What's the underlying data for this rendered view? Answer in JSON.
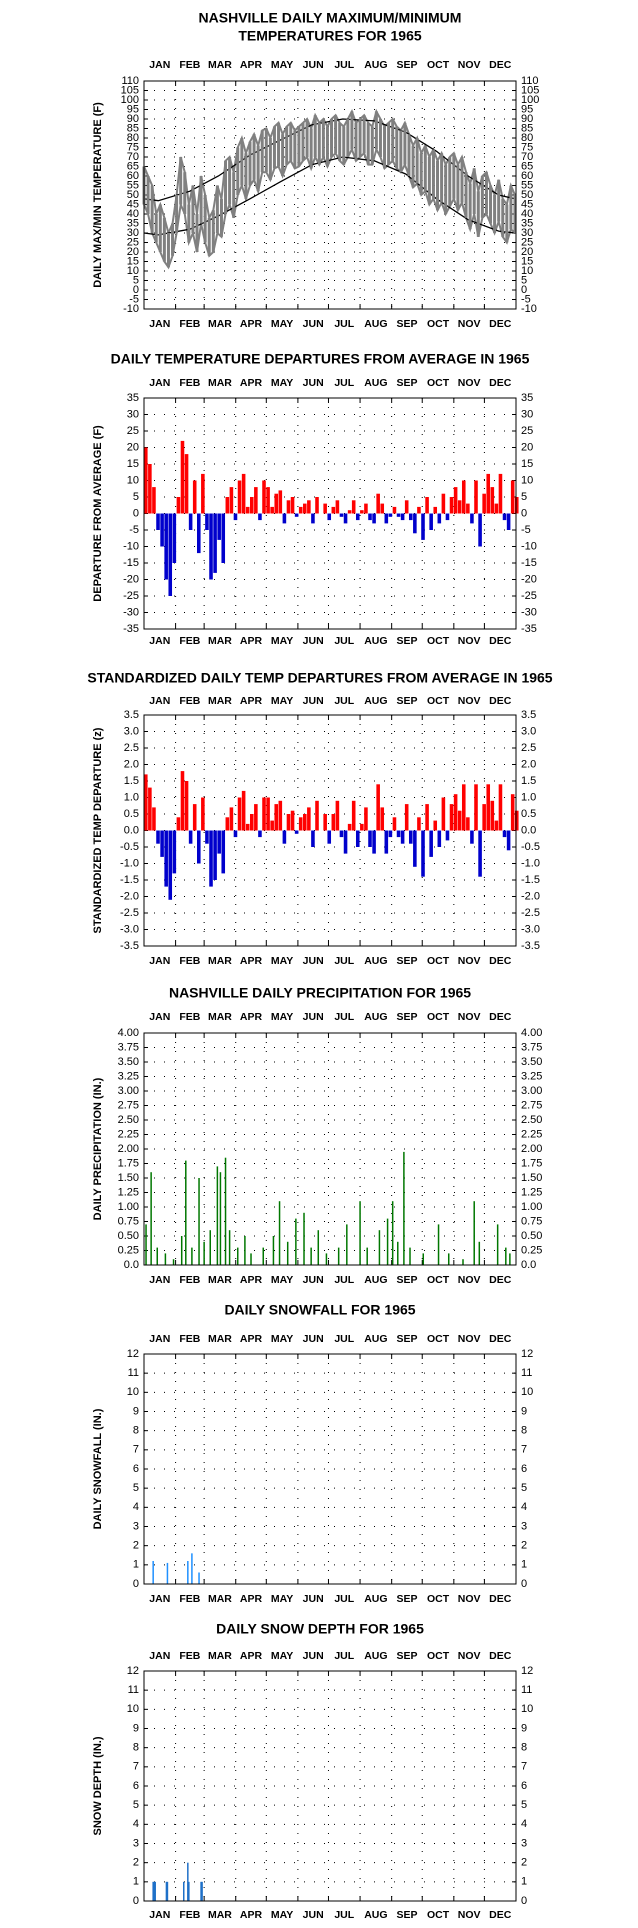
{
  "chart_data": [
    {
      "type": "line",
      "title": [
        "NASHVILLE DAILY MAXIMUM/MINIMUM",
        "TEMPERATURES FOR 1965"
      ],
      "ylabel": "DAILY MAX/MIN TEMPERATURE (F)",
      "categories": [
        "JAN",
        "FEB",
        "MAR",
        "APR",
        "MAY",
        "JUN",
        "JUL",
        "AUG",
        "SEP",
        "OCT",
        "NOV",
        "DEC"
      ],
      "xticks": [
        1,
        32,
        60,
        91,
        121,
        152,
        182,
        213,
        244,
        274,
        305,
        335,
        366
      ],
      "xlim": [
        1,
        366
      ],
      "ylim": [
        -10,
        110
      ],
      "yticks": [
        -10,
        -5,
        0,
        5,
        10,
        15,
        20,
        25,
        30,
        35,
        40,
        45,
        50,
        55,
        60,
        65,
        70,
        75,
        80,
        85,
        90,
        95,
        100,
        105,
        110
      ],
      "grid": true,
      "x": [
        1,
        5,
        9,
        13,
        17,
        21,
        25,
        29,
        33,
        37,
        41,
        45,
        49,
        53,
        57,
        61,
        65,
        69,
        73,
        77,
        81,
        85,
        89,
        93,
        97,
        101,
        105,
        109,
        113,
        117,
        121,
        125,
        129,
        133,
        137,
        141,
        145,
        149,
        153,
        157,
        161,
        165,
        169,
        173,
        177,
        181,
        185,
        189,
        193,
        197,
        201,
        205,
        209,
        213,
        217,
        221,
        225,
        229,
        233,
        237,
        241,
        245,
        249,
        253,
        257,
        261,
        265,
        269,
        273,
        277,
        281,
        285,
        289,
        293,
        297,
        301,
        305,
        309,
        313,
        317,
        321,
        325,
        329,
        333,
        337,
        341,
        345,
        349,
        353,
        357,
        361,
        365
      ],
      "series": [
        {
          "color": "#808080",
          "values": [
            65,
            60,
            55,
            40,
            45,
            38,
            30,
            35,
            50,
            70,
            62,
            45,
            55,
            40,
            60,
            50,
            38,
            42,
            55,
            48,
            68,
            70,
            62,
            75,
            80,
            72,
            78,
            82,
            76,
            84,
            85,
            80,
            86,
            88,
            82,
            86,
            88,
            84,
            86,
            88,
            90,
            85,
            92,
            88,
            90,
            86,
            90,
            92,
            88,
            86,
            90,
            94,
            88,
            90,
            92,
            88,
            86,
            94,
            90,
            86,
            88,
            90,
            86,
            84,
            88,
            82,
            76,
            80,
            72,
            76,
            70,
            74,
            68,
            72,
            66,
            70,
            72,
            66,
            70,
            62,
            56,
            64,
            52,
            60,
            62,
            55,
            50,
            58,
            48,
            45,
            55,
            50
          ]
        },
        {
          "color": "#808080",
          "values": [
            45,
            40,
            30,
            25,
            20,
            15,
            12,
            18,
            30,
            45,
            40,
            25,
            30,
            20,
            35,
            25,
            18,
            20,
            30,
            28,
            40,
            45,
            38,
            50,
            55,
            48,
            55,
            58,
            52,
            62,
            62,
            58,
            64,
            65,
            60,
            66,
            68,
            64,
            65,
            68,
            70,
            64,
            70,
            66,
            70,
            65,
            70,
            72,
            68,
            66,
            70,
            74,
            68,
            70,
            72,
            66,
            66,
            74,
            70,
            64,
            66,
            68,
            64,
            62,
            66,
            60,
            54,
            56,
            50,
            52,
            45,
            48,
            42,
            46,
            40,
            44,
            48,
            42,
            46,
            38,
            32,
            40,
            28,
            38,
            40,
            35,
            30,
            36,
            28,
            25,
            32,
            30
          ]
        },
        {
          "color": "#000000",
          "x": [
            1,
            15,
            46,
            74,
            105,
            135,
            166,
            196,
            227,
            258,
            288,
            319,
            349,
            365
          ],
          "values": [
            48,
            47,
            52,
            60,
            71,
            79,
            87,
            90,
            89,
            83,
            73,
            60,
            50,
            48
          ]
        },
        {
          "color": "#000000",
          "x": [
            1,
            15,
            46,
            74,
            105,
            135,
            166,
            196,
            227,
            258,
            288,
            319,
            349,
            365
          ],
          "values": [
            30,
            29,
            32,
            39,
            48,
            57,
            66,
            70,
            68,
            61,
            48,
            37,
            31,
            30
          ]
        }
      ]
    },
    {
      "type": "bar",
      "title": "DAILY TEMPERATURE DEPARTURES FROM AVERAGE IN 1965",
      "ylabel": "DEPARTURE FROM AVERAGE (F)",
      "categories": [
        "JAN",
        "FEB",
        "MAR",
        "APR",
        "MAY",
        "JUN",
        "JUL",
        "AUG",
        "SEP",
        "OCT",
        "NOV",
        "DEC"
      ],
      "xticks": [
        1,
        32,
        60,
        91,
        121,
        152,
        182,
        213,
        244,
        274,
        305,
        335,
        366
      ],
      "xlim": [
        1,
        366
      ],
      "ylim": [
        -35,
        35
      ],
      "yticks": [
        -35,
        -30,
        -25,
        -20,
        -15,
        -10,
        -5,
        0,
        5,
        10,
        15,
        20,
        25,
        30,
        35
      ],
      "grid": true,
      "positive_color": "#ff0000",
      "negative_color": "#0000cc",
      "x": [
        1,
        5,
        9,
        13,
        17,
        21,
        25,
        29,
        33,
        37,
        41,
        45,
        49,
        53,
        57,
        61,
        65,
        69,
        73,
        77,
        81,
        85,
        89,
        93,
        97,
        101,
        105,
        109,
        113,
        117,
        121,
        125,
        129,
        133,
        137,
        141,
        145,
        149,
        153,
        157,
        161,
        165,
        169,
        173,
        177,
        181,
        185,
        189,
        193,
        197,
        201,
        205,
        209,
        213,
        217,
        221,
        225,
        229,
        233,
        237,
        241,
        245,
        249,
        253,
        257,
        261,
        265,
        269,
        273,
        277,
        281,
        285,
        289,
        293,
        297,
        301,
        305,
        309,
        313,
        317,
        321,
        325,
        329,
        333,
        337,
        341,
        345,
        349,
        353,
        357,
        361,
        365
      ],
      "values": [
        20,
        15,
        8,
        -5,
        -10,
        -20,
        -25,
        -15,
        5,
        22,
        18,
        -5,
        10,
        -12,
        12,
        -5,
        -20,
        -18,
        -8,
        -15,
        5,
        8,
        -2,
        10,
        12,
        2,
        5,
        8,
        -2,
        10,
        8,
        2,
        6,
        7,
        -3,
        4,
        5,
        -1,
        2,
        3,
        4,
        -3,
        5,
        0,
        3,
        -2,
        2,
        4,
        -1,
        -3,
        1,
        4,
        -2,
        1,
        3,
        -2,
        -3,
        6,
        3,
        -3,
        -1,
        2,
        -1,
        -2,
        4,
        -2,
        -6,
        2,
        -8,
        5,
        -5,
        2,
        -3,
        6,
        -2,
        5,
        8,
        4,
        10,
        3,
        -3,
        10,
        -10,
        6,
        12,
        8,
        3,
        12,
        -2,
        -5,
        10,
        5
      ]
    },
    {
      "type": "bar",
      "title": "STANDARDIZED DAILY TEMP DEPARTURES FROM AVERAGE IN 1965",
      "ylabel": "STANDARDIZED TEMP DEPARTURE (z)",
      "categories": [
        "JAN",
        "FEB",
        "MAR",
        "APR",
        "MAY",
        "JUN",
        "JUL",
        "AUG",
        "SEP",
        "OCT",
        "NOV",
        "DEC"
      ],
      "xticks": [
        1,
        32,
        60,
        91,
        121,
        152,
        182,
        213,
        244,
        274,
        305,
        335,
        366
      ],
      "xlim": [
        1,
        366
      ],
      "ylim": [
        -3.5,
        3.5
      ],
      "yticks": [
        -3.5,
        {
          "value": -3,
          "label": "-3.0"
        },
        -2.5,
        {
          "value": -2,
          "label": "-2.0"
        },
        -1.5,
        {
          "value": -1,
          "label": "-1.0"
        },
        -0.5,
        {
          "value": 0,
          "label": "0.0"
        },
        0.5,
        {
          "value": 1,
          "label": "1.0"
        },
        1.5,
        {
          "value": 2,
          "label": "2.0"
        },
        2.5,
        {
          "value": 3,
          "label": "3.0"
        },
        3.5
      ],
      "grid": true,
      "positive_color": "#ff0000",
      "negative_color": "#0000cc",
      "x": [
        1,
        5,
        9,
        13,
        17,
        21,
        25,
        29,
        33,
        37,
        41,
        45,
        49,
        53,
        57,
        61,
        65,
        69,
        73,
        77,
        81,
        85,
        89,
        93,
        97,
        101,
        105,
        109,
        113,
        117,
        121,
        125,
        129,
        133,
        137,
        141,
        145,
        149,
        153,
        157,
        161,
        165,
        169,
        173,
        177,
        181,
        185,
        189,
        193,
        197,
        201,
        205,
        209,
        213,
        217,
        221,
        225,
        229,
        233,
        237,
        241,
        245,
        249,
        253,
        257,
        261,
        265,
        269,
        273,
        277,
        281,
        285,
        289,
        293,
        297,
        301,
        305,
        309,
        313,
        317,
        321,
        325,
        329,
        333,
        337,
        341,
        345,
        349,
        353,
        357,
        361,
        365
      ],
      "values": [
        1.7,
        1.3,
        0.7,
        -0.4,
        -0.8,
        -1.7,
        -2.1,
        -1.3,
        0.4,
        1.8,
        1.5,
        -0.4,
        0.8,
        -1.0,
        1.0,
        -0.4,
        -1.7,
        -1.5,
        -0.7,
        -1.3,
        0.4,
        0.7,
        -0.2,
        1.0,
        1.2,
        0.2,
        0.5,
        0.8,
        -0.2,
        1.0,
        1.0,
        0.3,
        0.8,
        0.9,
        -0.4,
        0.5,
        0.6,
        -0.1,
        0.4,
        0.5,
        0.7,
        -0.5,
        0.9,
        0,
        0.5,
        -0.4,
        0.5,
        0.9,
        -0.2,
        -0.7,
        0.2,
        0.9,
        -0.5,
        0.2,
        0.7,
        -0.5,
        -0.7,
        1.4,
        0.7,
        -0.7,
        -0.2,
        0.4,
        -0.2,
        -0.4,
        0.8,
        -0.4,
        -1.1,
        0.4,
        -1.4,
        0.8,
        -0.8,
        0.3,
        -0.5,
        1.0,
        -0.3,
        0.8,
        1.1,
        0.6,
        1.4,
        0.4,
        -0.4,
        1.4,
        -1.4,
        0.8,
        1.4,
        0.9,
        0.3,
        1.4,
        -0.2,
        -0.6,
        1.1,
        0.6
      ]
    },
    {
      "type": "stem",
      "title": "NASHVILLE DAILY PRECIPITATION FOR 1965",
      "ylabel": "DAILY PRECIPITATION (IN.)",
      "categories": [
        "JAN",
        "FEB",
        "MAR",
        "APR",
        "MAY",
        "JUN",
        "JUL",
        "AUG",
        "SEP",
        "OCT",
        "NOV",
        "DEC"
      ],
      "xticks": [
        1,
        32,
        60,
        91,
        121,
        152,
        182,
        213,
        244,
        274,
        305,
        335,
        366
      ],
      "xlim": [
        1,
        366
      ],
      "ylim": [
        0,
        4
      ],
      "yticks": [
        {
          "value": 0,
          "label": "0.0"
        },
        0.25,
        {
          "value": 0.5,
          "label": "0.50"
        },
        0.75,
        {
          "value": 1,
          "label": "1.00"
        },
        1.25,
        {
          "value": 1.5,
          "label": "1.50"
        },
        1.75,
        {
          "value": 2,
          "label": "2.00"
        },
        2.25,
        {
          "value": 2.5,
          "label": "2.50"
        },
        2.75,
        {
          "value": 3,
          "label": "3.00"
        },
        3.25,
        {
          "value": 3.5,
          "label": "3.50"
        },
        3.75,
        {
          "value": 4,
          "label": "4.00"
        }
      ],
      "grid": true,
      "color": "#007700",
      "x": [
        3,
        8,
        14,
        22,
        30,
        38,
        42,
        48,
        55,
        60,
        66,
        73,
        76,
        81,
        85,
        93,
        100,
        106,
        118,
        128,
        134,
        142,
        150,
        158,
        165,
        172,
        180,
        192,
        200,
        213,
        220,
        232,
        240,
        245,
        250,
        256,
        262,
        275,
        290,
        300,
        314,
        325,
        330,
        348,
        356,
        360
      ],
      "values": [
        0.7,
        1.6,
        0.3,
        0.2,
        0.1,
        0.5,
        1.8,
        0.3,
        1.5,
        0.4,
        0.6,
        1.7,
        1.6,
        1.85,
        0.6,
        0.3,
        0.5,
        0.2,
        0.3,
        0.5,
        1.1,
        0.4,
        0.8,
        0.9,
        0.3,
        0.6,
        0.2,
        0.3,
        0.7,
        1.1,
        0.3,
        0.6,
        0.8,
        1.1,
        0.4,
        1.95,
        0.3,
        0.2,
        0.7,
        0.2,
        0.1,
        1.1,
        0.4,
        0.7,
        0.3,
        0.2
      ]
    },
    {
      "type": "stem",
      "title": "DAILY SNOWFALL FOR 1965",
      "ylabel": "DAILY SNOWFALL (IN.)",
      "categories": [
        "JAN",
        "FEB",
        "MAR",
        "APR",
        "MAY",
        "JUN",
        "JUL",
        "AUG",
        "SEP",
        "OCT",
        "NOV",
        "DEC"
      ],
      "xticks": [
        1,
        32,
        60,
        91,
        121,
        152,
        182,
        213,
        244,
        274,
        305,
        335,
        366
      ],
      "xlim": [
        1,
        366
      ],
      "ylim": [
        0,
        12
      ],
      "yticks": [
        0,
        1,
        2,
        3,
        4,
        5,
        6,
        7,
        8,
        9,
        10,
        11,
        12
      ],
      "grid": true,
      "color": "#1e90ff",
      "x": [
        10,
        24,
        44,
        48,
        55
      ],
      "values": [
        1.2,
        1.1,
        1.2,
        1.6,
        0.6
      ]
    },
    {
      "type": "stem",
      "title": "DAILY SNOW DEPTH FOR 1965",
      "ylabel": "SNOW DEPTH (IN.)",
      "categories": [
        "JAN",
        "FEB",
        "MAR",
        "APR",
        "MAY",
        "JUN",
        "JUL",
        "AUG",
        "SEP",
        "OCT",
        "NOV",
        "DEC"
      ],
      "xticks": [
        1,
        32,
        60,
        91,
        121,
        152,
        182,
        213,
        244,
        274,
        305,
        335,
        366
      ],
      "xlim": [
        1,
        366
      ],
      "ylim": [
        0,
        12
      ],
      "yticks": [
        0,
        1,
        2,
        3,
        4,
        5,
        6,
        7,
        8,
        9,
        10,
        11,
        12
      ],
      "grid": true,
      "color": "#1e70c8",
      "x": [
        10,
        11,
        12,
        23,
        24,
        40,
        44,
        45,
        57,
        58
      ],
      "values": [
        1,
        1,
        1,
        1,
        1,
        1,
        2,
        1,
        1,
        1
      ]
    }
  ]
}
